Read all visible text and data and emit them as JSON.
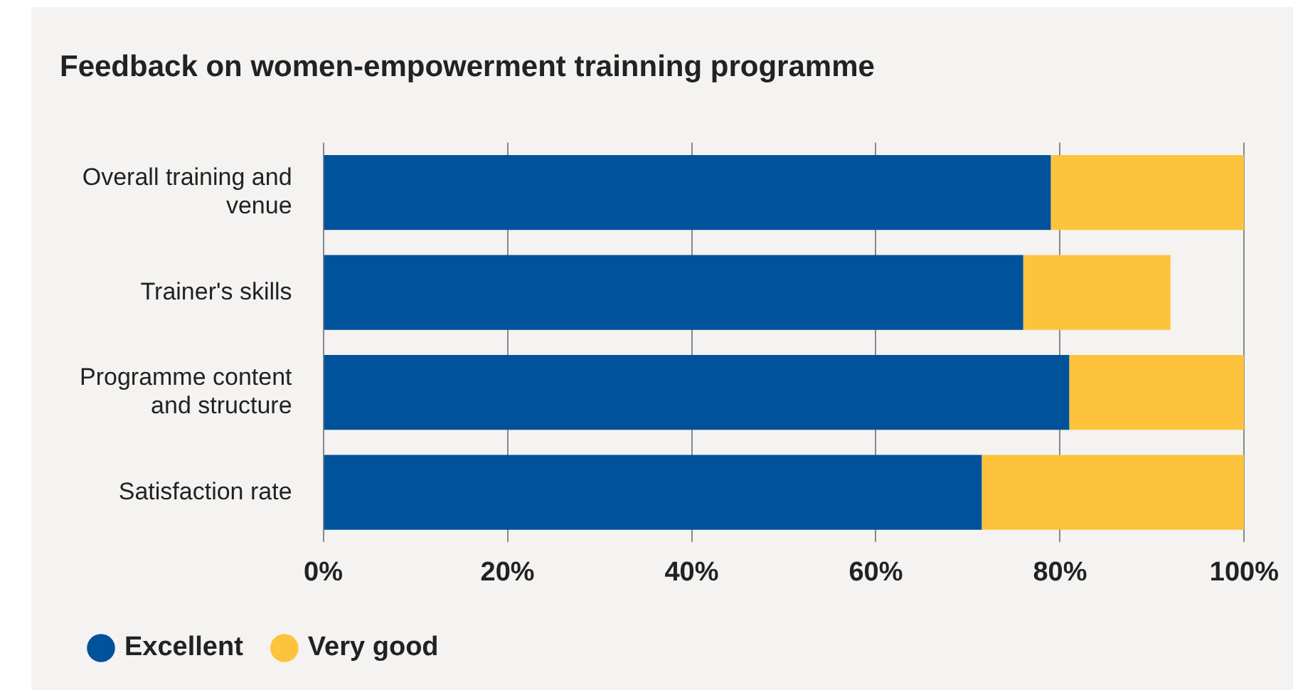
{
  "chart_data": {
    "type": "bar",
    "orientation": "horizontal",
    "stacked": true,
    "title": "Feedback on women-empowerment trainning programme",
    "categories": [
      "Overall training and venue",
      "Trainer's skills",
      "Programme content and structure",
      "Satisfaction rate"
    ],
    "series": [
      {
        "name": "Excellent",
        "color": "#00529b",
        "values": [
          79,
          76,
          81,
          71.5
        ]
      },
      {
        "name": "Very good",
        "color": "#fdc33c",
        "values": [
          21,
          16,
          19,
          28.5
        ]
      }
    ],
    "xlim": [
      0,
      100
    ],
    "xticks": [
      {
        "value": 0,
        "label": "0%"
      },
      {
        "value": 20,
        "label": "20%"
      },
      {
        "value": 40,
        "label": "40%"
      },
      {
        "value": 60,
        "label": "60%"
      },
      {
        "value": 80,
        "label": "80%"
      },
      {
        "value": 100,
        "label": "100%"
      }
    ],
    "grid": "x",
    "legend": "bottom left"
  }
}
